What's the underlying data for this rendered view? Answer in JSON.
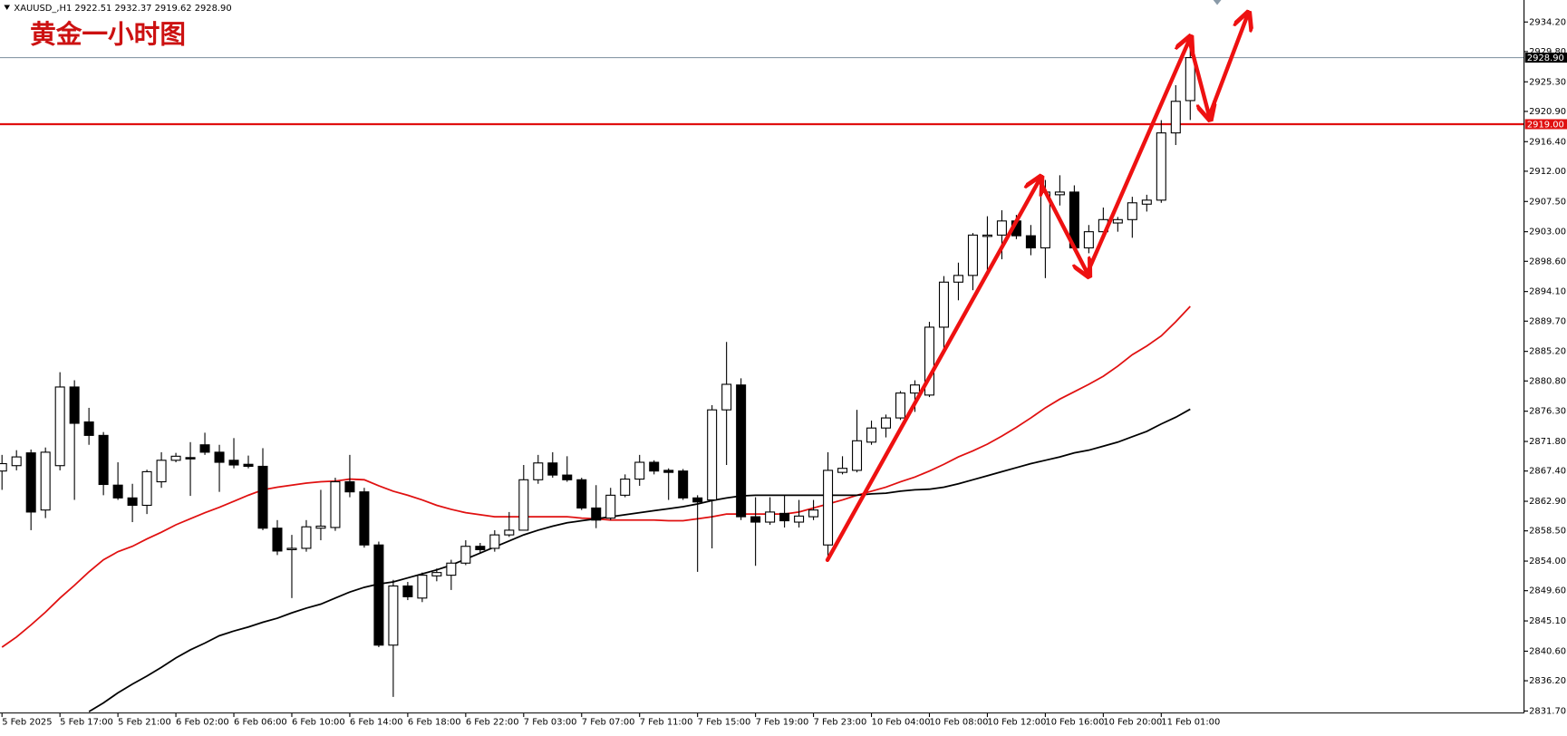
{
  "chart_data": {
    "type": "candlestick",
    "header": "XAUUSD_,H1  2922.51 2932.37 2919.62 2928.90",
    "title": "黄金一小时图",
    "categories": [
      "5 Feb 2025",
      null,
      null,
      null,
      "5 Feb 17:00",
      null,
      null,
      null,
      "5 Feb 21:00",
      null,
      null,
      null,
      "6 Feb 02:00",
      null,
      null,
      null,
      "6 Feb 06:00",
      null,
      null,
      null,
      "6 Feb 10:00",
      null,
      null,
      null,
      "6 Feb 14:00",
      null,
      null,
      null,
      "6 Feb 18:00",
      null,
      null,
      null,
      "6 Feb 22:00",
      null,
      null,
      null,
      "7 Feb 03:00",
      null,
      null,
      null,
      "7 Feb 07:00",
      null,
      null,
      null,
      "7 Feb 11:00",
      null,
      null,
      null,
      "7 Feb 15:00",
      null,
      null,
      null,
      "7 Feb 19:00",
      null,
      null,
      null,
      "7 Feb 23:00",
      null,
      null,
      null,
      "10 Feb 04:00",
      null,
      null,
      null,
      "10 Feb 08:00",
      null,
      null,
      null,
      "10 Feb 12:00",
      null,
      null,
      null,
      "10 Feb 16:00",
      null,
      null,
      null,
      "10 Feb 20:00",
      null,
      null,
      null,
      "11 Feb 01:00",
      null,
      null
    ],
    "open": [
      2867.4,
      2868.2,
      2870.1,
      2861.6,
      2868.2,
      2879.9,
      2874.7,
      2872.7,
      2865.3,
      2863.4,
      2862.3,
      2865.8,
      2869.0,
      2869.4,
      2871.3,
      2870.2,
      2869.0,
      2868.4,
      2868.1,
      2858.9,
      2855.7,
      2855.9,
      2858.9,
      2859.0,
      2865.8,
      2864.3,
      2856.4,
      2841.5,
      2850.3,
      2848.5,
      2851.8,
      2851.9,
      2853.7,
      2856.2,
      2855.9,
      2857.9,
      2858.6,
      2866.1,
      2868.6,
      2866.8,
      2866.1,
      2861.9,
      2860.4,
      2863.8,
      2866.2,
      2868.7,
      2867.5,
      2867.4,
      2863.4,
      2863.1,
      2876.5,
      2880.2,
      2860.6,
      2859.8,
      2861.1,
      2859.8,
      2860.6,
      2856.4,
      2867.2,
      2867.5,
      2871.7,
      2873.8,
      2875.3,
      2879.0,
      2878.7,
      2888.8,
      2895.5,
      2896.5,
      2902.3,
      2902.5,
      2904.6,
      2902.4,
      2900.6,
      2908.5,
      2908.9,
      2900.6,
      2903.0,
      2904.3,
      2904.8,
      2907.1,
      2907.7,
      2917.7,
      2922.51
    ],
    "high": [
      2869.8,
      2870.5,
      2870.6,
      2870.9,
      2882.1,
      2880.9,
      2876.8,
      2873.2,
      2868.7,
      2865.5,
      2867.6,
      2870.2,
      2870.1,
      2871.7,
      2873.1,
      2871.3,
      2872.3,
      2869.7,
      2870.8,
      2860.1,
      2857.9,
      2860.1,
      2864.6,
      2866.4,
      2869.8,
      2864.9,
      2856.9,
      2851.2,
      2850.9,
      2852.3,
      2852.9,
      2854.2,
      2857.1,
      2856.7,
      2858.6,
      2861.3,
      2868.3,
      2869.8,
      2870.2,
      2869.6,
      2866.4,
      2865.3,
      2864.9,
      2866.9,
      2869.8,
      2869.0,
      2867.8,
      2867.7,
      2863.8,
      2877.2,
      2886.6,
      2881.2,
      2863.5,
      2863.5,
      2863.8,
      2863.1,
      2863.1,
      2870.2,
      2869.6,
      2876.5,
      2874.9,
      2875.8,
      2879.3,
      2880.9,
      2889.6,
      2896.4,
      2898.4,
      2902.8,
      2905.3,
      2906.2,
      2905.5,
      2904.0,
      2910.7,
      2911.4,
      2909.9,
      2904.0,
      2906.6,
      2905.2,
      2908.2,
      2908.5,
      2919.6,
      2924.8,
      2932.37
    ],
    "low": [
      2864.6,
      2867.5,
      2858.6,
      2860.4,
      2867.5,
      2863.1,
      2871.3,
      2863.8,
      2863.1,
      2859.8,
      2861.0,
      2864.9,
      2868.7,
      2863.7,
      2869.8,
      2864.3,
      2867.8,
      2867.8,
      2858.6,
      2854.9,
      2848.5,
      2855.4,
      2857.1,
      2858.5,
      2863.5,
      2856.0,
      2841.2,
      2833.8,
      2848.2,
      2847.9,
      2851.0,
      2849.7,
      2853.4,
      2855.2,
      2855.4,
      2857.6,
      2858.6,
      2865.5,
      2866.4,
      2865.8,
      2861.6,
      2858.9,
      2860.1,
      2863.5,
      2865.2,
      2866.9,
      2863.1,
      2863.1,
      2852.4,
      2855.9,
      2868.3,
      2860.1,
      2853.3,
      2859.4,
      2859.0,
      2859.0,
      2860.1,
      2854.5,
      2866.9,
      2867.2,
      2871.3,
      2872.4,
      2875.0,
      2876.2,
      2878.4,
      2885.4,
      2892.8,
      2894.3,
      2897.3,
      2898.9,
      2901.9,
      2899.5,
      2896.1,
      2906.9,
      2900.2,
      2899.8,
      2901.9,
      2903.0,
      2902.1,
      2906.0,
      2907.3,
      2915.9,
      2919.62
    ],
    "close": [
      2868.5,
      2869.5,
      2861.3,
      2870.2,
      2879.9,
      2874.5,
      2872.7,
      2865.4,
      2863.4,
      2862.3,
      2867.3,
      2869.0,
      2869.6,
      2869.2,
      2870.2,
      2868.7,
      2868.3,
      2868.1,
      2858.9,
      2855.5,
      2855.9,
      2859.1,
      2859.2,
      2865.8,
      2864.3,
      2856.4,
      2841.5,
      2850.3,
      2848.7,
      2851.9,
      2852.3,
      2853.7,
      2856.2,
      2855.7,
      2857.9,
      2858.6,
      2866.1,
      2868.6,
      2866.8,
      2866.1,
      2861.9,
      2860.1,
      2863.8,
      2866.2,
      2868.7,
      2867.4,
      2867.2,
      2863.4,
      2862.8,
      2876.5,
      2880.3,
      2860.6,
      2859.8,
      2861.3,
      2860.0,
      2860.7,
      2861.6,
      2867.5,
      2867.8,
      2871.9,
      2873.8,
      2875.3,
      2879.0,
      2880.2,
      2888.8,
      2895.5,
      2896.5,
      2902.5,
      2902.5,
      2904.6,
      2902.4,
      2900.6,
      2908.9,
      2908.9,
      2900.6,
      2903.0,
      2904.8,
      2904.8,
      2907.3,
      2907.7,
      2917.7,
      2922.4,
      2928.9
    ],
    "up_color": "#ffffff",
    "down_color": "#000000",
    "outline_color": "#000000",
    "lines": [
      {
        "color": "#e01010",
        "values": [
          2841.2,
          2842.7,
          2844.5,
          2846.4,
          2848.5,
          2850.4,
          2852.4,
          2854.2,
          2855.4,
          2856.2,
          2857.3,
          2858.3,
          2859.4,
          2860.3,
          2861.2,
          2862.0,
          2862.9,
          2863.8,
          2864.6,
          2865.0,
          2865.3,
          2865.6,
          2865.8,
          2865.9,
          2866.2,
          2866.1,
          2865.2,
          2864.4,
          2863.8,
          2863.1,
          2862.3,
          2861.7,
          2861.2,
          2860.9,
          2860.6,
          2860.6,
          2860.6,
          2860.6,
          2860.6,
          2860.6,
          2860.4,
          2860.3,
          2860.1,
          2860.1,
          2860.1,
          2860.1,
          2860.0,
          2860.0,
          2860.3,
          2860.6,
          2861.0,
          2861.0,
          2861.0,
          2861.0,
          2861.0,
          2861.3,
          2861.9,
          2862.5,
          2863.1,
          2863.8,
          2864.4,
          2865.0,
          2865.8,
          2866.5,
          2867.4,
          2868.4,
          2869.5,
          2870.4,
          2871.4,
          2872.6,
          2873.9,
          2875.3,
          2876.8,
          2878.1,
          2879.2,
          2880.3,
          2881.5,
          2883.0,
          2884.7,
          2886.0,
          2887.5,
          2889.6,
          2891.9
        ]
      },
      {
        "color": "#000000",
        "values": [
          null,
          null,
          null,
          null,
          null,
          null,
          2831.6,
          2832.9,
          2834.4,
          2835.7,
          2836.9,
          2838.2,
          2839.6,
          2840.8,
          2841.8,
          2842.9,
          2843.6,
          2844.2,
          2844.9,
          2845.5,
          2846.3,
          2847.0,
          2847.6,
          2848.5,
          2849.4,
          2850.1,
          2850.6,
          2850.9,
          2851.5,
          2852.1,
          2852.7,
          2853.4,
          2854.3,
          2855.2,
          2856.1,
          2857.0,
          2857.9,
          2858.6,
          2859.2,
          2859.7,
          2860.0,
          2860.3,
          2860.6,
          2860.9,
          2861.2,
          2861.5,
          2861.8,
          2862.1,
          2862.5,
          2863.0,
          2863.4,
          2863.7,
          2863.8,
          2863.8,
          2863.8,
          2863.8,
          2863.8,
          2863.8,
          2863.8,
          2863.8,
          2864.0,
          2864.1,
          2864.4,
          2864.6,
          2864.7,
          2865.0,
          2865.5,
          2866.1,
          2866.7,
          2867.3,
          2867.9,
          2868.5,
          2869.0,
          2869.5,
          2870.1,
          2870.5,
          2871.1,
          2871.7,
          2872.5,
          2873.3,
          2874.4,
          2875.4,
          2876.6
        ]
      }
    ],
    "hlines": [
      {
        "value": 2928.9,
        "label": "2928.90",
        "color": "#8a9aa8",
        "box_color": "#000000"
      },
      {
        "value": 2919.0,
        "label": "2919.00",
        "color": "#e01010",
        "box_color": "#e01010"
      }
    ],
    "ylim": [
      2831.7,
      2934.2
    ],
    "yticks": [
      {
        "value": 2934.2,
        "label": "2934.20"
      },
      {
        "value": 2929.8,
        "label": "2929.80"
      },
      {
        "value": 2925.3,
        "label": "2925.30"
      },
      {
        "value": 2920.9,
        "label": "2920.90"
      },
      {
        "value": 2916.4,
        "label": "2916.40"
      },
      {
        "value": 2912.0,
        "label": "2912.00"
      },
      {
        "value": 2907.5,
        "label": "2907.50"
      },
      {
        "value": 2903.0,
        "label": "2903.00"
      },
      {
        "value": 2898.6,
        "label": "2898.60"
      },
      {
        "value": 2894.1,
        "label": "2894.10"
      },
      {
        "value": 2889.7,
        "label": "2889.70"
      },
      {
        "value": 2885.2,
        "label": "2885.20"
      },
      {
        "value": 2880.8,
        "label": "2880.80"
      },
      {
        "value": 2876.3,
        "label": "2876.30"
      },
      {
        "value": 2871.8,
        "label": "2871.80"
      },
      {
        "value": 2867.4,
        "label": "2867.40"
      },
      {
        "value": 2862.9,
        "label": "2862.90"
      },
      {
        "value": 2858.5,
        "label": "2858.50"
      },
      {
        "value": 2854.0,
        "label": "2854.00"
      },
      {
        "value": 2849.6,
        "label": "2849.60"
      },
      {
        "value": 2845.1,
        "label": "2845.10"
      },
      {
        "value": 2840.6,
        "label": "2840.60"
      },
      {
        "value": 2836.2,
        "label": "2836.20"
      },
      {
        "value": 2831.7,
        "label": "2831.70"
      }
    ],
    "grid": false
  }
}
